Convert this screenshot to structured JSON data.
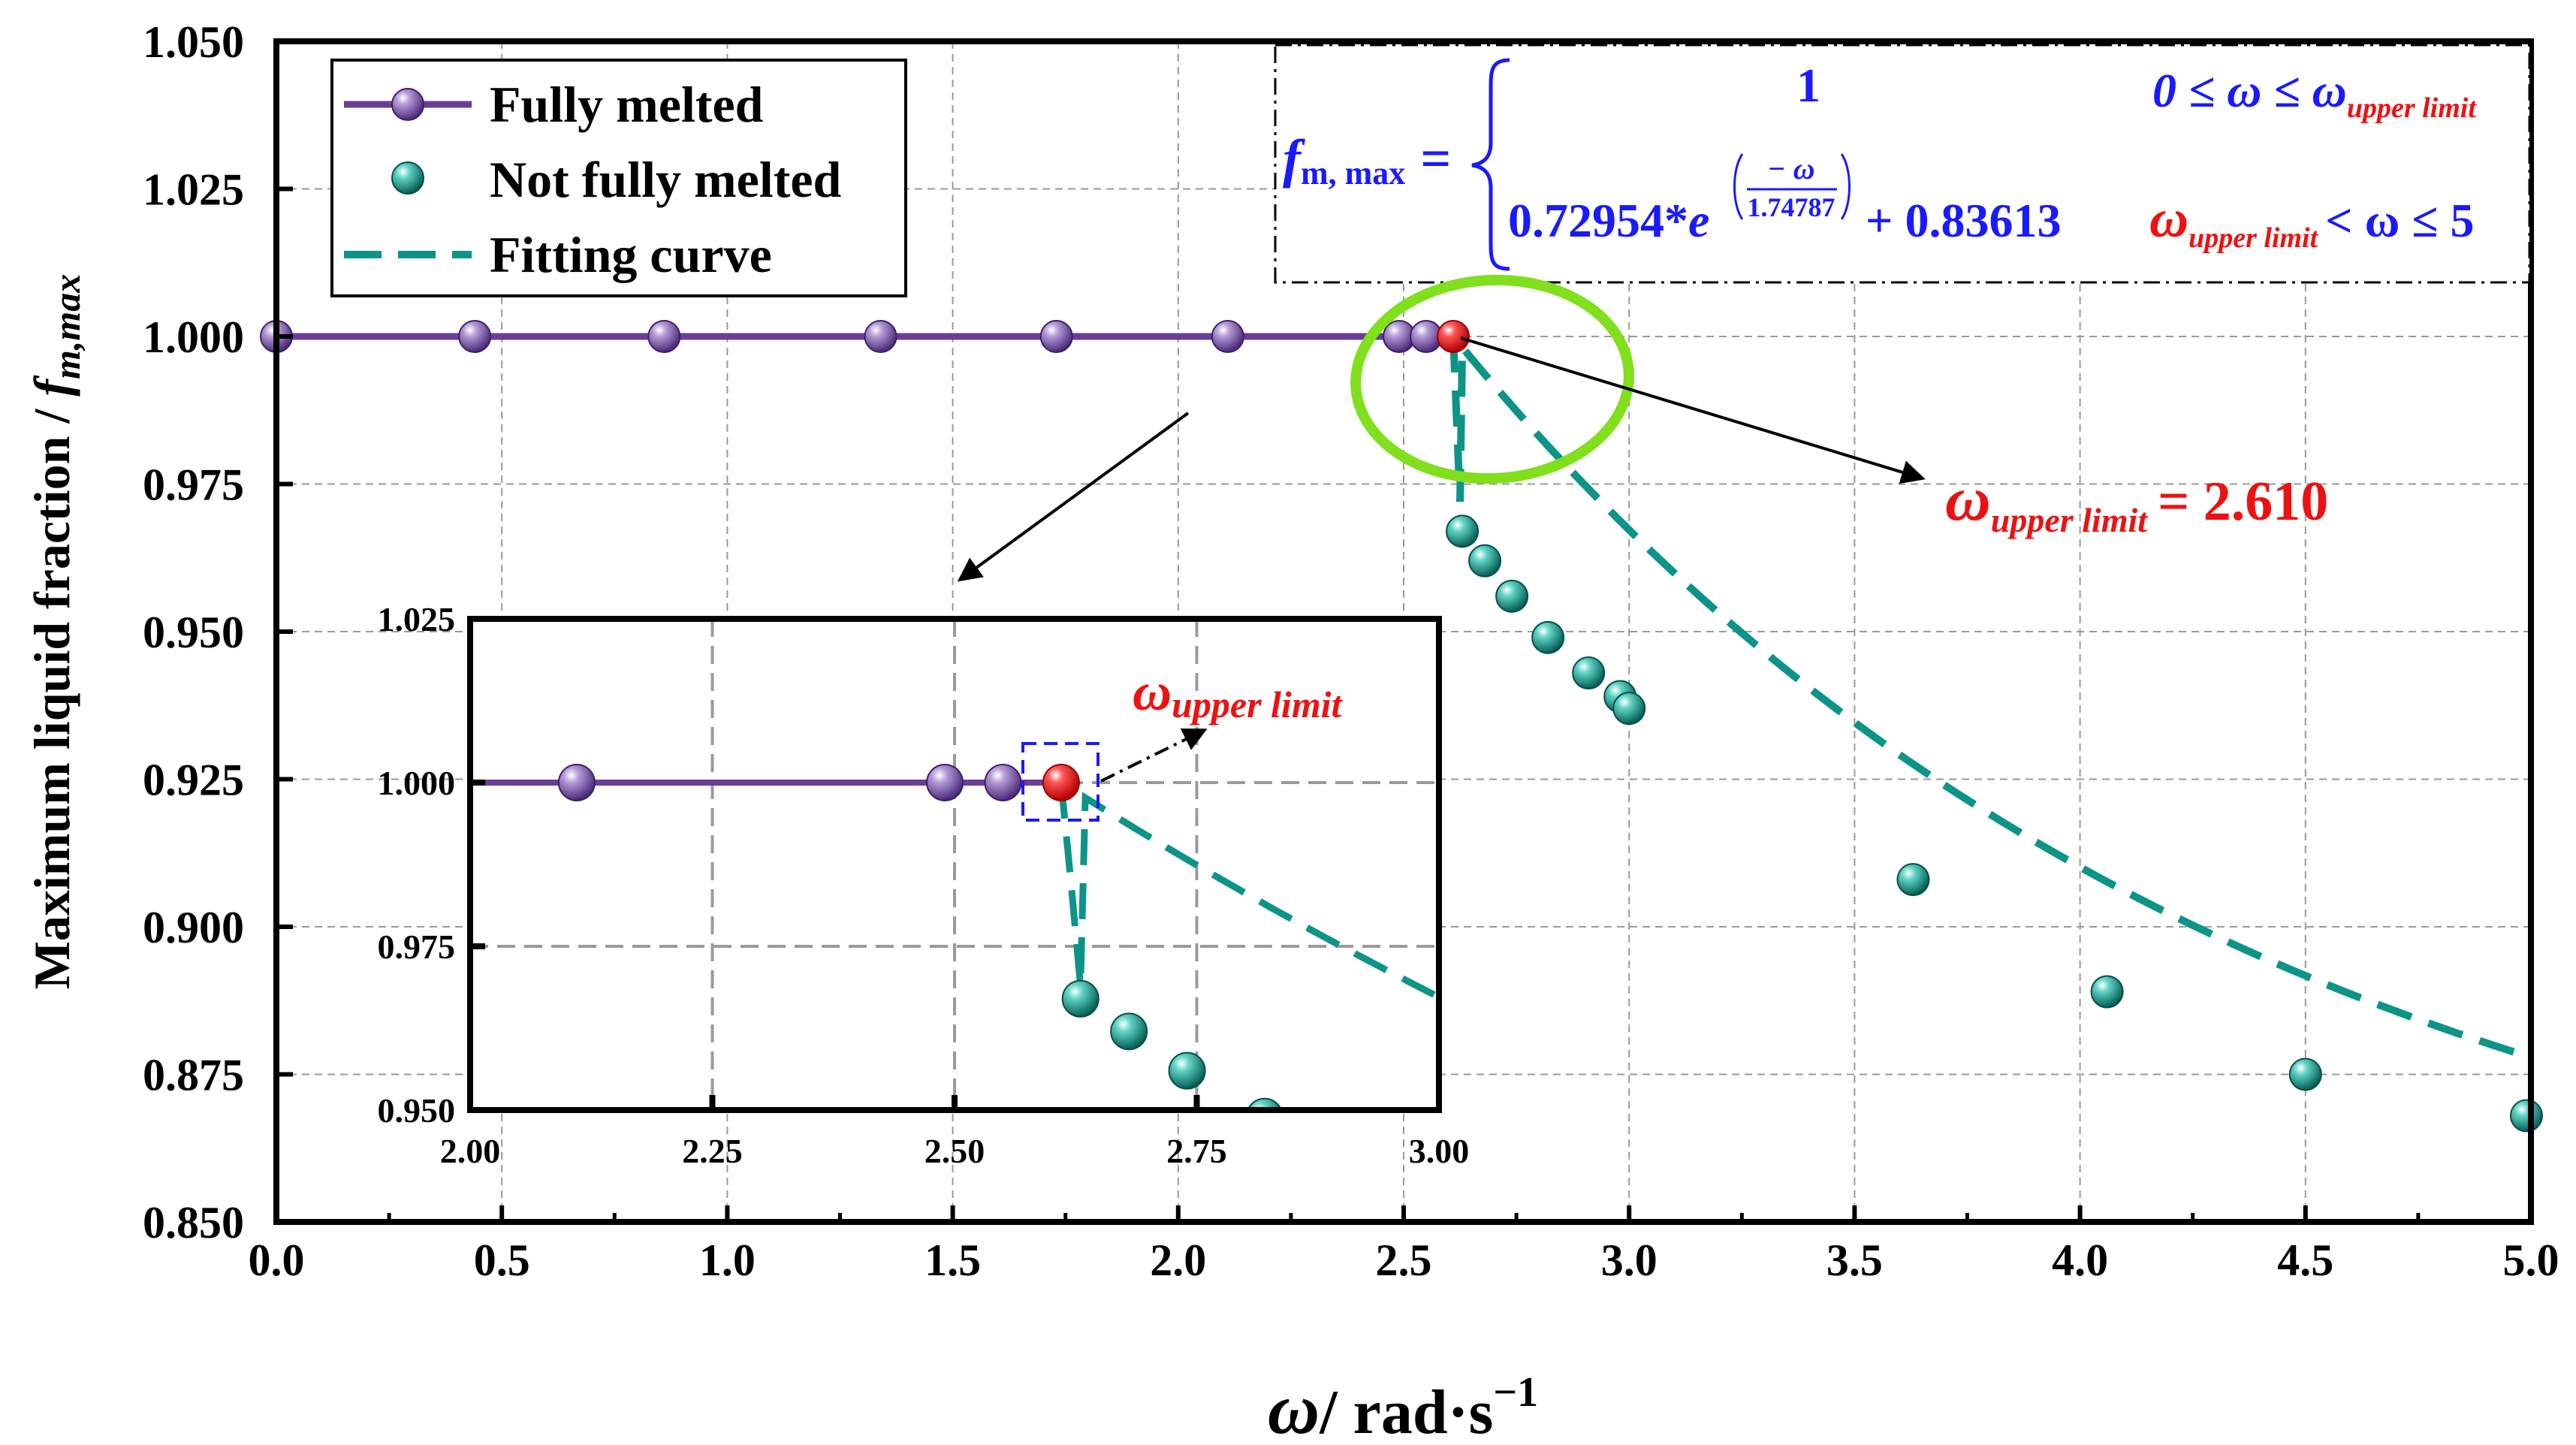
{
  "chart_data": {
    "type": "scatter",
    "title": "",
    "xlabel": {
      "symbol": "ω",
      "unit": "/ rad·s",
      "exponent": "−1"
    },
    "ylabel": {
      "main": "Maximum liquid  fraction / ",
      "symbol": "f",
      "subscript": "m,max"
    },
    "xlim": [
      0.0,
      5.0
    ],
    "ylim": [
      0.85,
      1.05
    ],
    "x_ticks": [
      "0.0",
      "0.5",
      "1.0",
      "1.5",
      "2.0",
      "2.5",
      "3.0",
      "3.5",
      "4.0",
      "4.5",
      "5.0"
    ],
    "y_ticks": [
      "0.850",
      "0.875",
      "0.900",
      "0.925",
      "0.950",
      "0.975",
      "1.000",
      "1.025",
      "1.050"
    ],
    "grid": true,
    "legend": {
      "position": "top-left",
      "entries": [
        "Fully melted",
        "Not fully melted",
        "Fitting curve"
      ]
    },
    "series": [
      {
        "name": "Fully melted",
        "color": "#6a3d9a",
        "x": [
          0.0,
          0.44,
          0.86,
          1.34,
          1.73,
          2.11,
          2.49,
          2.55
        ],
        "y": [
          1.0,
          1.0,
          1.0,
          1.0,
          1.0,
          1.0,
          1.0,
          1.0
        ]
      },
      {
        "name": "Not fully melted",
        "color": "#0d9488",
        "x": [
          2.63,
          2.68,
          2.74,
          2.82,
          2.91,
          2.98,
          3.0,
          3.63,
          4.06,
          4.5,
          4.99
        ],
        "y": [
          0.967,
          0.962,
          0.956,
          0.949,
          0.943,
          0.939,
          0.937,
          0.908,
          0.889,
          0.875,
          0.868
        ]
      },
      {
        "name": "Upper limit point",
        "color": "#ee1111",
        "x": [
          2.61
        ],
        "y": [
          1.0
        ]
      }
    ],
    "fitting_curve": {
      "name": "Fitting curve",
      "color": "#0d9488",
      "a": 0.72954,
      "b": 1.74787,
      "c": 0.83613,
      "x_start": 2.61,
      "x_end": 5.0
    },
    "equation": {
      "lhs_symbol": "f",
      "lhs_sub": "m, max",
      "eq": "=",
      "case1_value": "1",
      "case1_condition": "0 ≤ ω ≤ ω",
      "case1_condition_sub": "upper limit",
      "case2_coef": "0.72954*",
      "case2_base": "e",
      "case2_exp_num": "− ω",
      "case2_exp_den": "1.74787",
      "case2_const": "+ 0.83613",
      "case2_cond_symbol": "ω",
      "case2_cond_sub": "upper limit",
      "case2_cond_rest": "< ω ≤ 5"
    },
    "annotations": {
      "main": {
        "symbol": "ω",
        "sub": "upper limit",
        "rest": "= 2.610"
      },
      "inset": {
        "symbol": "ω",
        "sub": "upper limit"
      }
    },
    "inset": {
      "xlim": [
        2.0,
        3.0
      ],
      "ylim": [
        0.95,
        1.025
      ],
      "x_ticks": [
        "2.00",
        "2.25",
        "2.50",
        "2.75",
        "3.00"
      ],
      "y_ticks": [
        "0.950",
        "0.975",
        "1.000",
        "1.025"
      ]
    }
  },
  "colors": {
    "axis": "#000000",
    "grid": "#9a9a9a",
    "equation_blue": "#1a1aff",
    "equation_red": "#ee1111",
    "highlight_ellipse": "#7fe01b",
    "purple": "#6a3d9a",
    "teal": "#0d9488"
  }
}
